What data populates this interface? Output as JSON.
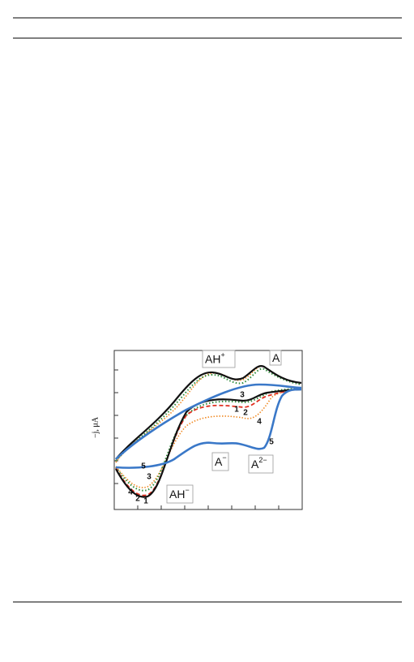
{
  "figure": {
    "y_axis_label": "−j, μA",
    "peak_labels": [
      {
        "base": "AH",
        "sup": "+"
      },
      {
        "base": "A",
        "sup": null
      },
      {
        "base": "A",
        "sup": "−"
      },
      {
        "base": "A",
        "sup": "2−"
      },
      {
        "base": "AH",
        "sup": "−"
      }
    ],
    "curve_labels": [
      "3",
      "1",
      "2",
      "4",
      "5",
      "5",
      "3",
      "4",
      "2",
      "1"
    ]
  }
}
